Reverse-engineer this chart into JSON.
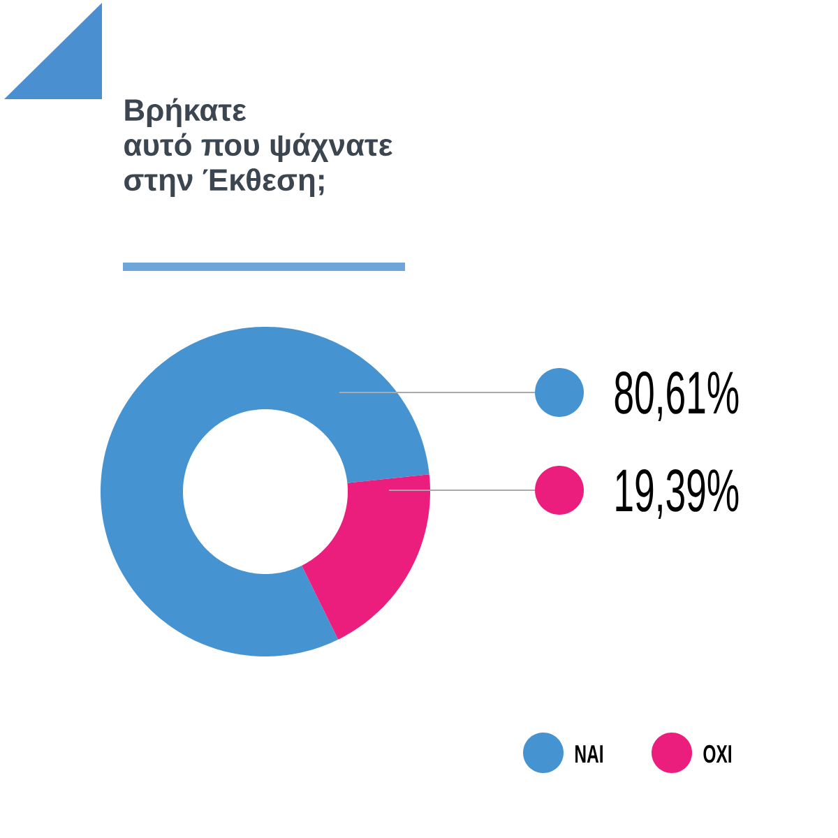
{
  "chart_data": {
    "type": "donut",
    "title": "Βρήκατε αυτό που ψάχνατε στην Έκθεση;",
    "categories": [
      "ΝΑΙ",
      "ΟΧΙ"
    ],
    "values": [
      80.61,
      19.39
    ],
    "colors": [
      "#4593d0",
      "#ec1e7d"
    ],
    "value_labels": [
      "80,61%",
      "19,39%"
    ],
    "legend": "bottom right"
  }
}
